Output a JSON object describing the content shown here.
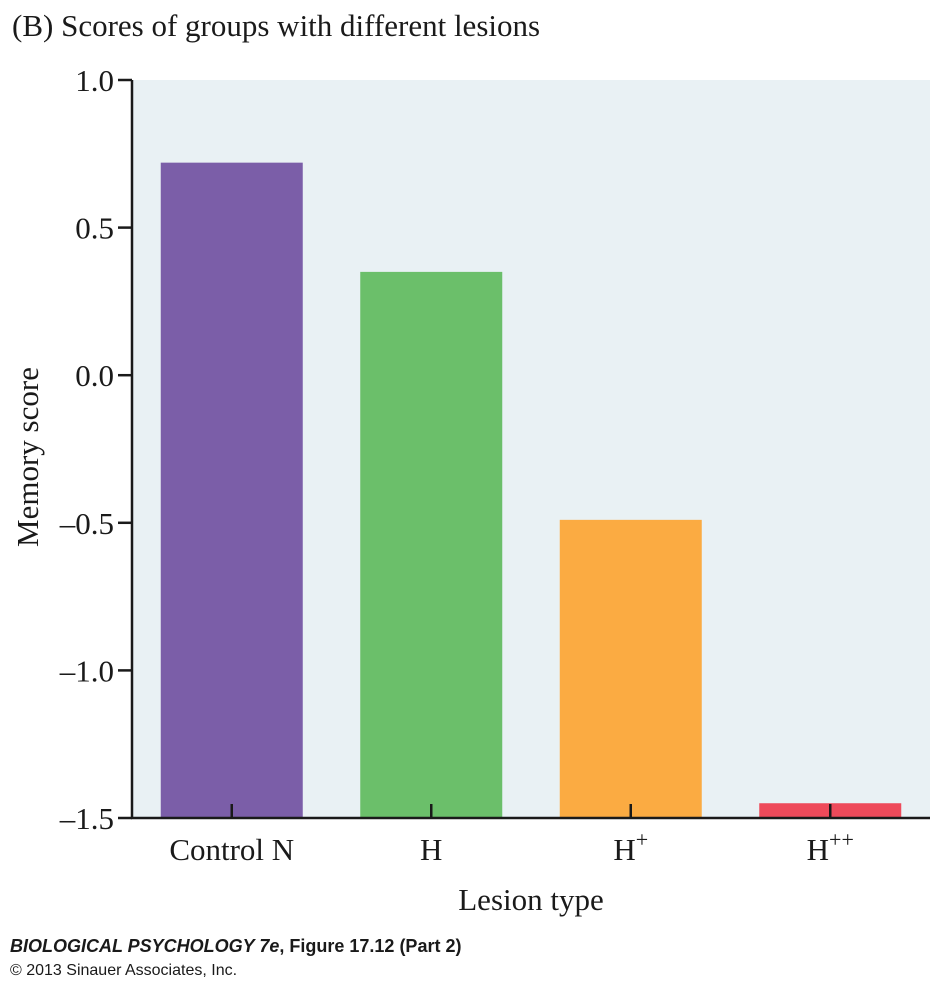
{
  "chart_data": {
    "type": "bar",
    "title": "(B)  Scores of groups with different lesions",
    "xlabel": "Lesion type",
    "ylabel": "Memory score",
    "ylim": [
      -1.5,
      1.0
    ],
    "yticks": [
      1.0,
      0.5,
      0.0,
      -0.5,
      -1.0,
      -1.5
    ],
    "ytick_labels": [
      "1.0",
      "0.5",
      "0.0",
      "–0.5",
      "–1.0",
      "–1.5"
    ],
    "categories": [
      {
        "base": "Control N",
        "sup": ""
      },
      {
        "base": "H",
        "sup": ""
      },
      {
        "base": "H",
        "sup": "+"
      },
      {
        "base": "H",
        "sup": "++"
      }
    ],
    "values": [
      0.72,
      0.35,
      -0.49,
      -1.45
    ],
    "colors": [
      "#7b5ea8",
      "#6bbf6a",
      "#fbab42",
      "#ee4a5a"
    ],
    "plot_background": "#e9f1f4",
    "grid": false,
    "legend": "none"
  },
  "credit": {
    "book": "BIOLOGICAL PSYCHOLOGY 7e",
    "figure": ", Figure 17.12 (Part 2)",
    "copyright": "© 2013 Sinauer Associates, Inc."
  }
}
